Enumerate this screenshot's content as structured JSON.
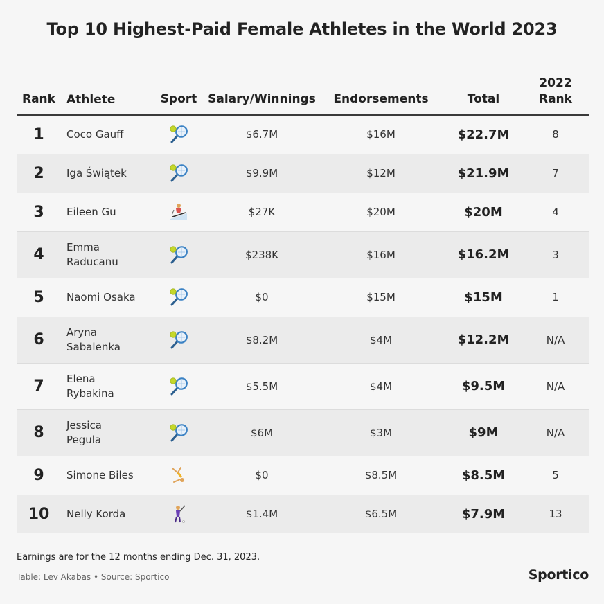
{
  "title": "Top 10 Highest-Paid Female Athletes in the World 2023",
  "columns": {
    "rank": "Rank",
    "athlete": "Athlete",
    "sport": "Sport",
    "salary": "Salary/Winnings",
    "endorsements": "Endorsements",
    "total": "Total",
    "prev_rank_line1": "2022",
    "prev_rank_line2": "Rank"
  },
  "chart_data": {
    "type": "table",
    "rows": [
      {
        "rank": "1",
        "athlete": "Coco Gauff",
        "sport_icon": "tennis-racket-icon",
        "salary": "$6.7M",
        "endorsements": "$16M",
        "total": "$22.7M",
        "prev_rank": "8"
      },
      {
        "rank": "2",
        "athlete": "Iga Świątek",
        "sport_icon": "tennis-racket-icon",
        "salary": "$9.9M",
        "endorsements": "$12M",
        "total": "$21.9M",
        "prev_rank": "7"
      },
      {
        "rank": "3",
        "athlete": "Eileen Gu",
        "sport_icon": "skier-icon",
        "salary": "$27K",
        "endorsements": "$20M",
        "total": "$20M",
        "prev_rank": "4"
      },
      {
        "rank": "4",
        "athlete": "Emma Raducanu",
        "sport_icon": "tennis-racket-icon",
        "salary": "$238K",
        "endorsements": "$16M",
        "total": "$16.2M",
        "prev_rank": "3"
      },
      {
        "rank": "5",
        "athlete": "Naomi Osaka",
        "sport_icon": "tennis-racket-icon",
        "salary": "$0",
        "endorsements": "$15M",
        "total": "$15M",
        "prev_rank": "1"
      },
      {
        "rank": "6",
        "athlete": "Aryna Sabalenka",
        "sport_icon": "tennis-racket-icon",
        "salary": "$8.2M",
        "endorsements": "$4M",
        "total": "$12.2M",
        "prev_rank": "N/A"
      },
      {
        "rank": "7",
        "athlete": "Elena Rybakina",
        "sport_icon": "tennis-racket-icon",
        "salary": "$5.5M",
        "endorsements": "$4M",
        "total": "$9.5M",
        "prev_rank": "N/A"
      },
      {
        "rank": "8",
        "athlete": "Jessica Pegula",
        "sport_icon": "tennis-racket-icon",
        "salary": "$6M",
        "endorsements": "$3M",
        "total": "$9M",
        "prev_rank": "N/A"
      },
      {
        "rank": "9",
        "athlete": "Simone Biles",
        "sport_icon": "gymnast-icon",
        "salary": "$0",
        "endorsements": "$8.5M",
        "total": "$8.5M",
        "prev_rank": "5"
      },
      {
        "rank": "10",
        "athlete": "Nelly Korda",
        "sport_icon": "golfer-icon",
        "salary": "$1.4M",
        "endorsements": "$6.5M",
        "total": "$7.9M",
        "prev_rank": "13"
      }
    ]
  },
  "footnote": "Earnings are for the 12 months ending Dec. 31, 2023.",
  "credit": "Table: Lev Akabas • Source: Sportico",
  "brand": "Sportico",
  "colors": {
    "background": "#f6f6f6",
    "alt_row": "#ebebeb",
    "text": "#222222",
    "tennis_ball": "#c5d82a",
    "racket": "#3b82c4"
  }
}
